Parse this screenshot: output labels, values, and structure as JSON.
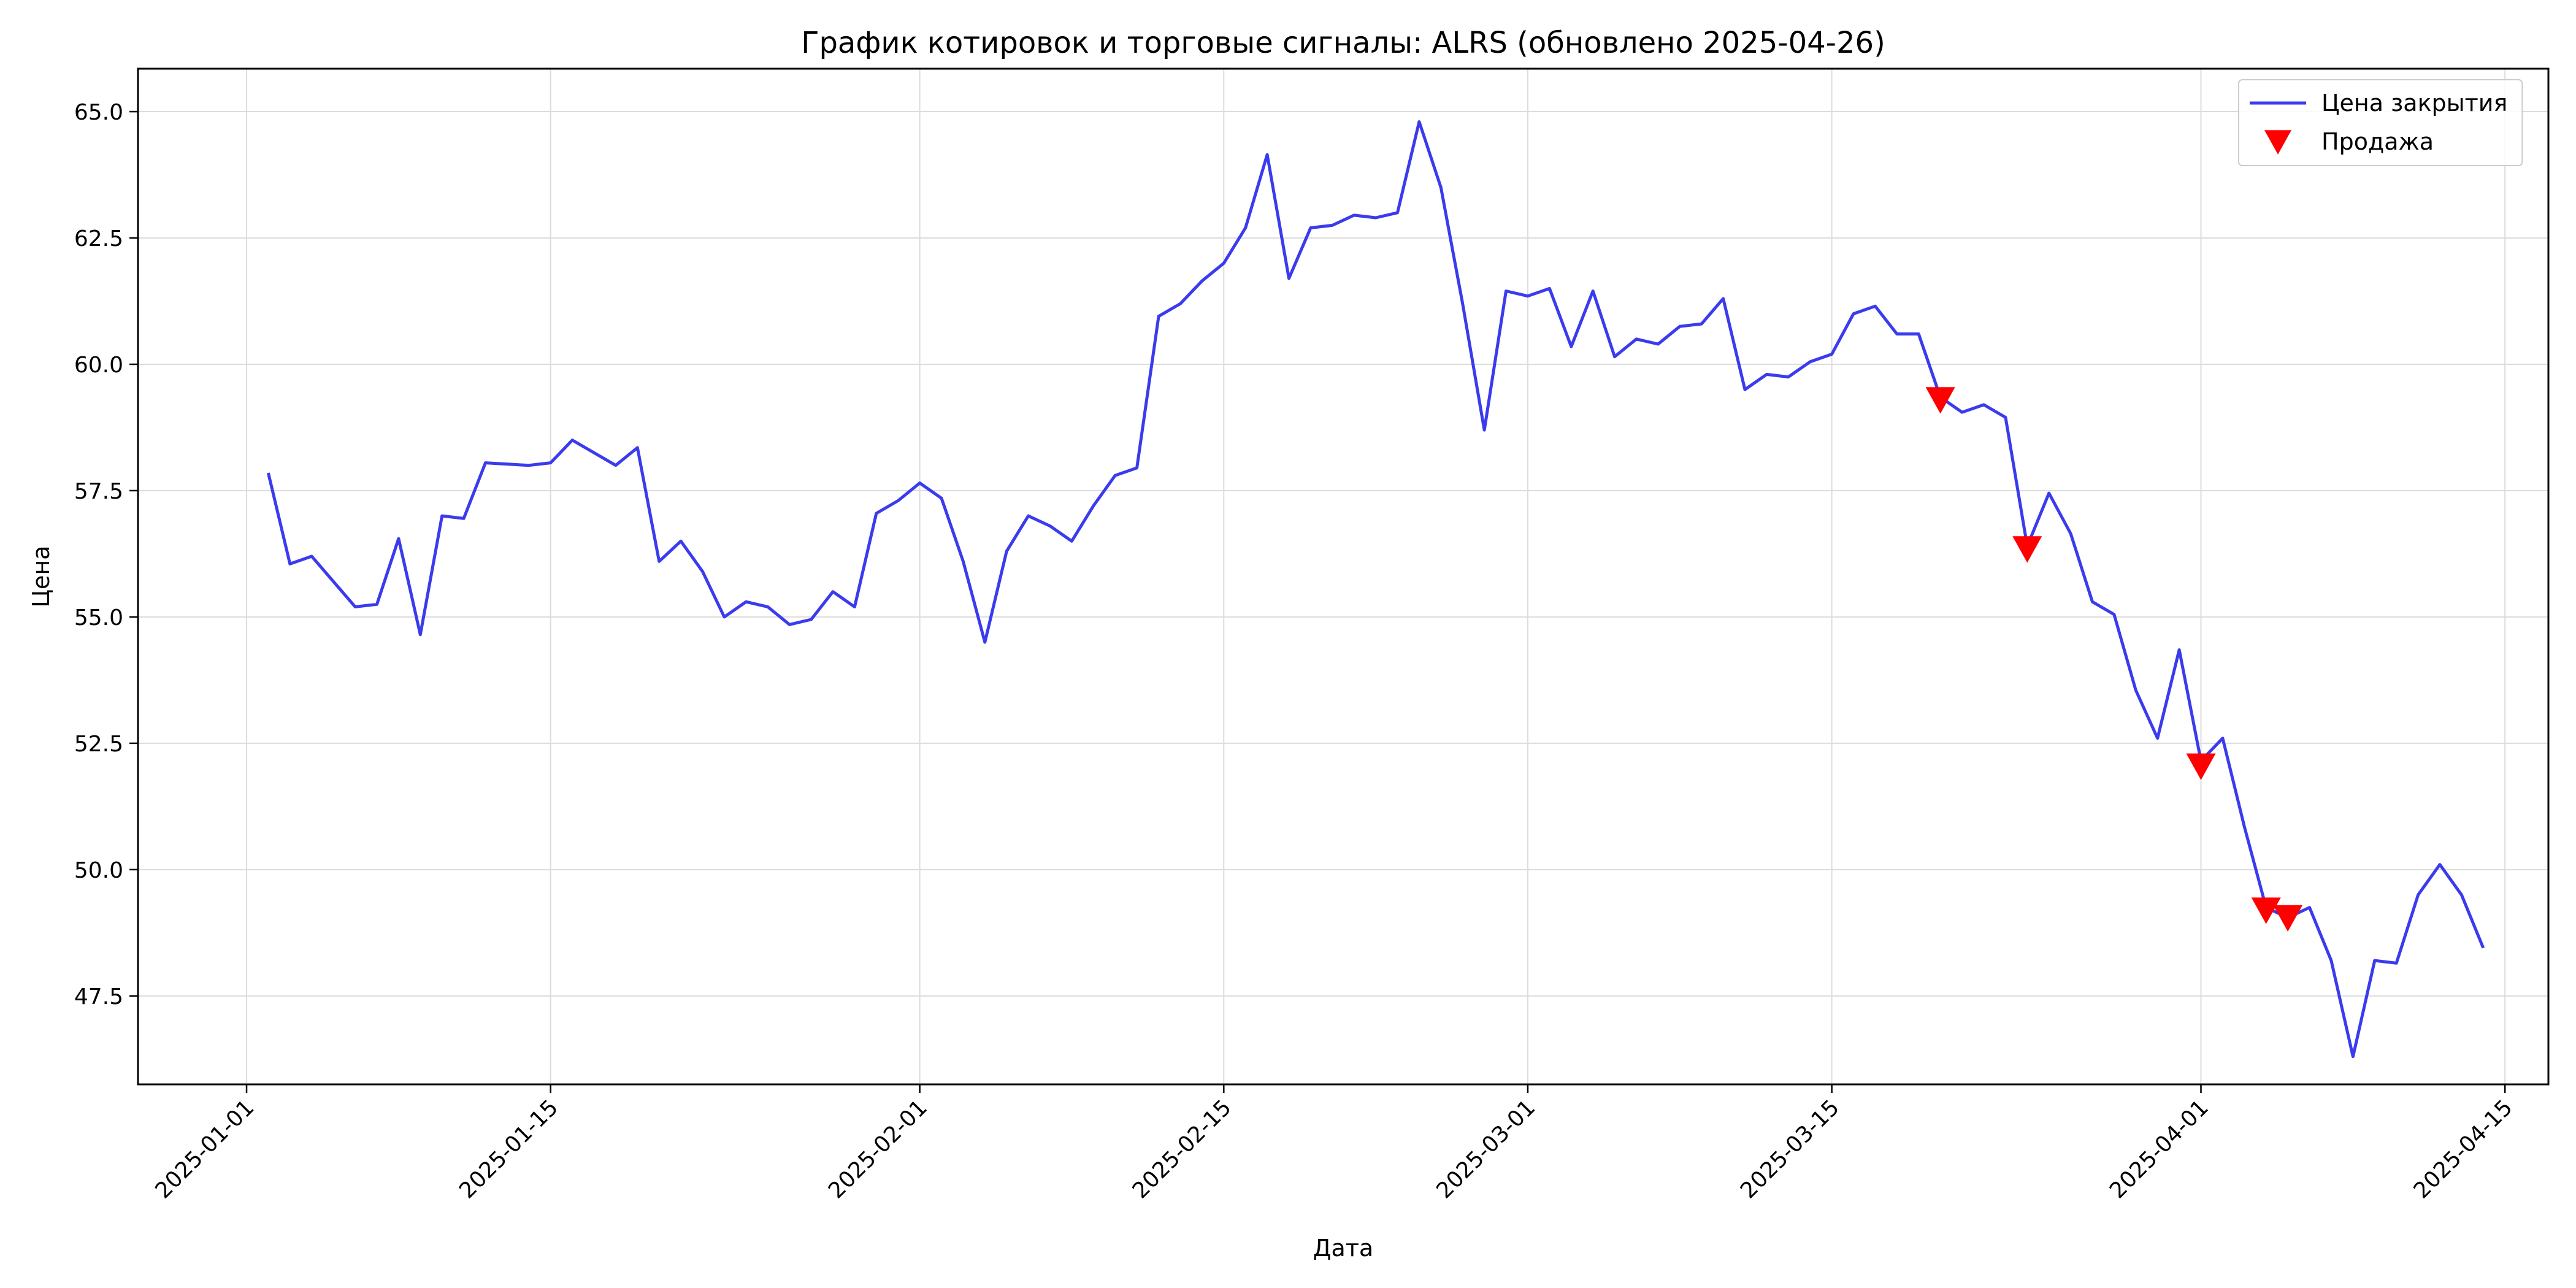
{
  "chart_data": {
    "type": "line",
    "title": "График котировок и торговые сигналы: ALRS (обновлено 2025-04-26)",
    "xlabel": "Дата",
    "ylabel": "Цена",
    "xlim": [
      "2024-12-27",
      "2025-04-17"
    ],
    "ylim": [
      45.75,
      65.85
    ],
    "grid": true,
    "legend_position": "top-right",
    "x_ticks": [
      "2025-01-01",
      "2025-01-15",
      "2025-02-01",
      "2025-02-15",
      "2025-03-01",
      "2025-03-15",
      "2025-04-01",
      "2025-04-15"
    ],
    "y_ticks": [
      47.5,
      50.0,
      52.5,
      55.0,
      57.5,
      60.0,
      62.5,
      65.0
    ],
    "series": [
      {
        "name": "Цена закрытия",
        "kind": "line",
        "color": "#3b3bee",
        "points": [
          [
            "2025-01-02",
            57.85
          ],
          [
            "2025-01-03",
            56.05
          ],
          [
            "2025-01-04",
            56.2
          ],
          [
            "2025-01-06",
            55.2
          ],
          [
            "2025-01-07",
            55.25
          ],
          [
            "2025-01-08",
            56.55
          ],
          [
            "2025-01-09",
            54.65
          ],
          [
            "2025-01-10",
            57.0
          ],
          [
            "2025-01-11",
            56.95
          ],
          [
            "2025-01-12",
            58.05
          ],
          [
            "2025-01-14",
            58.0
          ],
          [
            "2025-01-15",
            58.05
          ],
          [
            "2025-01-16",
            58.5
          ],
          [
            "2025-01-18",
            58.0
          ],
          [
            "2025-01-19",
            58.35
          ],
          [
            "2025-01-20",
            56.1
          ],
          [
            "2025-01-21",
            56.5
          ],
          [
            "2025-01-22",
            55.9
          ],
          [
            "2025-01-23",
            55.0
          ],
          [
            "2025-01-24",
            55.3
          ],
          [
            "2025-01-25",
            55.2
          ],
          [
            "2025-01-26",
            54.85
          ],
          [
            "2025-01-27",
            54.95
          ],
          [
            "2025-01-28",
            55.5
          ],
          [
            "2025-01-29",
            55.2
          ],
          [
            "2025-01-30",
            57.05
          ],
          [
            "2025-01-31",
            57.3
          ],
          [
            "2025-02-01",
            57.65
          ],
          [
            "2025-02-02",
            57.35
          ],
          [
            "2025-02-03",
            56.1
          ],
          [
            "2025-02-04",
            54.5
          ],
          [
            "2025-02-05",
            56.3
          ],
          [
            "2025-02-06",
            57.0
          ],
          [
            "2025-02-07",
            56.8
          ],
          [
            "2025-02-08",
            56.5
          ],
          [
            "2025-02-09",
            57.2
          ],
          [
            "2025-02-10",
            57.8
          ],
          [
            "2025-02-11",
            57.95
          ],
          [
            "2025-02-12",
            60.95
          ],
          [
            "2025-02-13",
            61.2
          ],
          [
            "2025-02-14",
            61.65
          ],
          [
            "2025-02-15",
            62.0
          ],
          [
            "2025-02-16",
            62.7
          ],
          [
            "2025-02-17",
            64.15
          ],
          [
            "2025-02-18",
            61.7
          ],
          [
            "2025-02-19",
            62.7
          ],
          [
            "2025-02-20",
            62.75
          ],
          [
            "2025-02-21",
            62.95
          ],
          [
            "2025-02-22",
            62.9
          ],
          [
            "2025-02-23",
            63.0
          ],
          [
            "2025-02-24",
            64.8
          ],
          [
            "2025-02-25",
            63.5
          ],
          [
            "2025-02-26",
            61.2
          ],
          [
            "2025-02-27",
            58.7
          ],
          [
            "2025-02-28",
            61.45
          ],
          [
            "2025-03-01",
            61.35
          ],
          [
            "2025-03-02",
            61.5
          ],
          [
            "2025-03-03",
            60.35
          ],
          [
            "2025-03-04",
            61.45
          ],
          [
            "2025-03-05",
            60.15
          ],
          [
            "2025-03-06",
            60.5
          ],
          [
            "2025-03-07",
            60.4
          ],
          [
            "2025-03-08",
            60.75
          ],
          [
            "2025-03-09",
            60.8
          ],
          [
            "2025-03-10",
            61.3
          ],
          [
            "2025-03-11",
            59.5
          ],
          [
            "2025-03-12",
            59.8
          ],
          [
            "2025-03-13",
            59.75
          ],
          [
            "2025-03-14",
            60.05
          ],
          [
            "2025-03-15",
            60.2
          ],
          [
            "2025-03-16",
            61.0
          ],
          [
            "2025-03-17",
            61.15
          ],
          [
            "2025-03-18",
            60.6
          ],
          [
            "2025-03-19",
            60.6
          ],
          [
            "2025-03-20",
            59.35
          ],
          [
            "2025-03-21",
            59.05
          ],
          [
            "2025-03-22",
            59.2
          ],
          [
            "2025-03-23",
            58.95
          ],
          [
            "2025-03-24",
            56.4
          ],
          [
            "2025-03-25",
            57.45
          ],
          [
            "2025-03-26",
            56.65
          ],
          [
            "2025-03-27",
            55.3
          ],
          [
            "2025-03-28",
            55.05
          ],
          [
            "2025-03-29",
            53.55
          ],
          [
            "2025-03-30",
            52.6
          ],
          [
            "2025-03-31",
            54.35
          ],
          [
            "2025-04-01",
            52.15
          ],
          [
            "2025-04-02",
            52.6
          ],
          [
            "2025-04-03",
            50.85
          ],
          [
            "2025-04-04",
            49.25
          ],
          [
            "2025-04-05",
            49.05
          ],
          [
            "2025-04-06",
            49.25
          ],
          [
            "2025-04-07",
            48.2
          ],
          [
            "2025-04-08",
            46.3
          ],
          [
            "2025-04-09",
            48.2
          ],
          [
            "2025-04-10",
            48.15
          ],
          [
            "2025-04-11",
            49.5
          ],
          [
            "2025-04-12",
            50.1
          ],
          [
            "2025-04-13",
            49.5
          ],
          [
            "2025-04-14",
            48.45
          ]
        ]
      },
      {
        "name": "Продажа",
        "kind": "marker",
        "marker": "triangle-down",
        "color": "#ff0000",
        "points": [
          [
            "2025-03-20",
            59.3
          ],
          [
            "2025-03-24",
            56.35
          ],
          [
            "2025-04-01",
            52.05
          ],
          [
            "2025-04-04",
            49.2
          ],
          [
            "2025-04-05",
            49.05
          ]
        ]
      }
    ]
  }
}
